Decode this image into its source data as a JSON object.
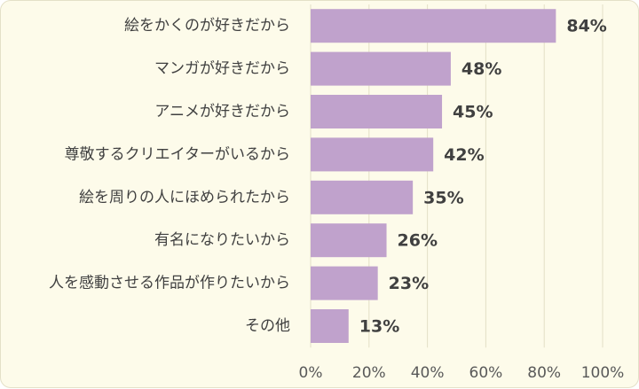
{
  "chart_data": {
    "type": "bar",
    "orientation": "horizontal",
    "categories": [
      "絵をかくのが好きだから",
      "マンガが好きだから",
      "アニメが好きだから",
      "尊敬するクリエイターがいるから",
      "絵を周りの人にほめられたから",
      "有名になりたいから",
      "人を感動させる作品が作りたいから",
      "その他"
    ],
    "values": [
      84,
      48,
      45,
      42,
      35,
      26,
      23,
      13
    ],
    "value_labels": [
      "84%",
      "48%",
      "45%",
      "42%",
      "35%",
      "26%",
      "23%",
      "13%"
    ],
    "xlim": [
      0,
      100
    ],
    "x_ticks": [
      0,
      20,
      40,
      60,
      80,
      100
    ],
    "x_tick_labels": [
      "0%",
      "20%",
      "40%",
      "60%",
      "80%",
      "100%"
    ],
    "grid": true,
    "bar_color": "#c0a2cc",
    "background_color": "#fdfbea"
  }
}
